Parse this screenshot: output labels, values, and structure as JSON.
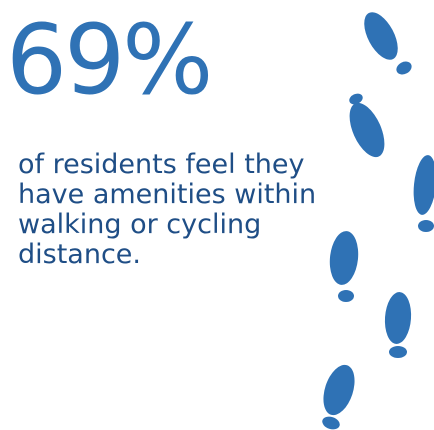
{
  "stat": {
    "value": "69%"
  },
  "caption": {
    "lines": [
      "of residents feel they",
      "have amenities within",
      "walking or cycling",
      "distance."
    ]
  },
  "decoration": {
    "icon": "footprints-icon",
    "color": "#2f72b5"
  }
}
